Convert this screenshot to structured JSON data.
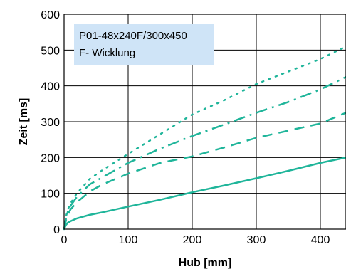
{
  "chart_data": {
    "type": "line",
    "xlabel": "Hub [mm]",
    "ylabel": "Zeit [ms]",
    "xlim": [
      0,
      440
    ],
    "ylim": [
      0,
      600
    ],
    "xticks": [
      0,
      100,
      200,
      300,
      400
    ],
    "yticks": [
      0,
      100,
      200,
      300,
      400,
      500,
      600
    ],
    "grid": true,
    "line_color": "#1fb59a",
    "annotation": {
      "lines": [
        "P01-48x240F/300x450",
        "F- Wicklung"
      ],
      "background": "#cfe4f7"
    },
    "series": [
      {
        "style": "solid",
        "points": [
          [
            0,
            0
          ],
          [
            3,
            12
          ],
          [
            6,
            18
          ],
          [
            10,
            22
          ],
          [
            20,
            30
          ],
          [
            40,
            40
          ],
          [
            60,
            47
          ],
          [
            100,
            63
          ],
          [
            150,
            82
          ],
          [
            200,
            103
          ],
          [
            250,
            122
          ],
          [
            300,
            142
          ],
          [
            350,
            163
          ],
          [
            400,
            185
          ],
          [
            440,
            200
          ]
        ]
      },
      {
        "style": "dashed",
        "points": [
          [
            0,
            0
          ],
          [
            3,
            25
          ],
          [
            6,
            40
          ],
          [
            10,
            55
          ],
          [
            20,
            75
          ],
          [
            40,
            105
          ],
          [
            60,
            125
          ],
          [
            100,
            155
          ],
          [
            150,
            185
          ],
          [
            200,
            203
          ],
          [
            250,
            228
          ],
          [
            300,
            255
          ],
          [
            350,
            275
          ],
          [
            400,
            295
          ],
          [
            440,
            325
          ]
        ]
      },
      {
        "style": "dashdot",
        "points": [
          [
            0,
            0
          ],
          [
            3,
            30
          ],
          [
            6,
            50
          ],
          [
            10,
            65
          ],
          [
            20,
            90
          ],
          [
            40,
            125
          ],
          [
            60,
            145
          ],
          [
            100,
            185
          ],
          [
            150,
            225
          ],
          [
            200,
            260
          ],
          [
            250,
            292
          ],
          [
            300,
            325
          ],
          [
            350,
            355
          ],
          [
            400,
            390
          ],
          [
            440,
            425
          ]
        ]
      },
      {
        "style": "dotted",
        "points": [
          [
            0,
            0
          ],
          [
            3,
            35
          ],
          [
            6,
            55
          ],
          [
            10,
            72
          ],
          [
            20,
            100
          ],
          [
            40,
            140
          ],
          [
            60,
            165
          ],
          [
            100,
            210
          ],
          [
            150,
            265
          ],
          [
            200,
            320
          ],
          [
            250,
            360
          ],
          [
            300,
            405
          ],
          [
            350,
            440
          ],
          [
            400,
            475
          ],
          [
            440,
            510
          ]
        ]
      }
    ]
  }
}
